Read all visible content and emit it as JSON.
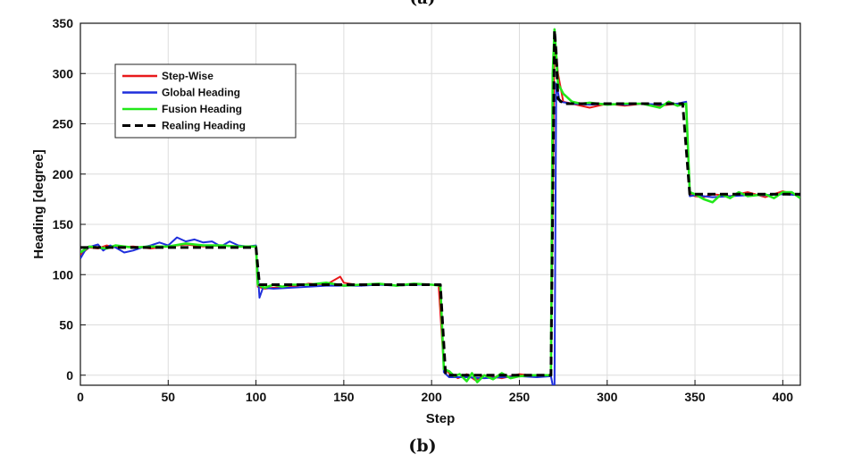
{
  "captions": {
    "top": "(a)",
    "bottom": "(b)"
  },
  "chart_data": {
    "type": "line",
    "title": "",
    "xlabel": "Step",
    "ylabel": "Heading [degree]",
    "xlim": [
      0,
      410
    ],
    "ylim": [
      -10,
      350
    ],
    "xticks": [
      0,
      50,
      100,
      150,
      200,
      250,
      300,
      350,
      400
    ],
    "yticks": [
      0,
      50,
      100,
      150,
      200,
      250,
      300,
      350
    ],
    "grid": true,
    "legend_position": "top-left",
    "series": [
      {
        "name": "Step-Wise",
        "color": "#e8191b",
        "style": "solid",
        "points": [
          [
            0,
            120
          ],
          [
            5,
            127
          ],
          [
            10,
            126
          ],
          [
            15,
            129
          ],
          [
            20,
            127
          ],
          [
            30,
            128
          ],
          [
            40,
            126
          ],
          [
            50,
            128
          ],
          [
            60,
            130
          ],
          [
            70,
            128
          ],
          [
            80,
            129
          ],
          [
            90,
            128
          ],
          [
            100,
            128
          ],
          [
            101,
            88
          ],
          [
            105,
            86
          ],
          [
            110,
            87
          ],
          [
            120,
            88
          ],
          [
            130,
            91
          ],
          [
            140,
            90
          ],
          [
            148,
            98
          ],
          [
            150,
            92
          ],
          [
            160,
            89
          ],
          [
            170,
            91
          ],
          [
            180,
            89
          ],
          [
            190,
            90
          ],
          [
            200,
            90
          ],
          [
            204,
            90
          ],
          [
            207,
            8
          ],
          [
            210,
            2
          ],
          [
            215,
            -3
          ],
          [
            220,
            1
          ],
          [
            225,
            -5
          ],
          [
            230,
            0
          ],
          [
            240,
            -3
          ],
          [
            250,
            1
          ],
          [
            260,
            -1
          ],
          [
            268,
            0
          ],
          [
            270,
            340
          ],
          [
            272,
            300
          ],
          [
            275,
            272
          ],
          [
            280,
            270
          ],
          [
            290,
            266
          ],
          [
            300,
            270
          ],
          [
            310,
            268
          ],
          [
            320,
            270
          ],
          [
            330,
            268
          ],
          [
            340,
            270
          ],
          [
            345,
            270
          ],
          [
            347,
            180
          ],
          [
            350,
            178
          ],
          [
            355,
            177
          ],
          [
            360,
            180
          ],
          [
            370,
            178
          ],
          [
            380,
            182
          ],
          [
            390,
            177
          ],
          [
            400,
            183
          ],
          [
            410,
            178
          ]
        ]
      },
      {
        "name": "Global Heading",
        "color": "#1f2fdc",
        "style": "solid",
        "points": [
          [
            0,
            116
          ],
          [
            3,
            125
          ],
          [
            6,
            128
          ],
          [
            10,
            130
          ],
          [
            13,
            124
          ],
          [
            17,
            129
          ],
          [
            20,
            127
          ],
          [
            25,
            122
          ],
          [
            30,
            124
          ],
          [
            35,
            127
          ],
          [
            40,
            129
          ],
          [
            45,
            132
          ],
          [
            50,
            129
          ],
          [
            55,
            137
          ],
          [
            60,
            133
          ],
          [
            65,
            135
          ],
          [
            70,
            132
          ],
          [
            75,
            133
          ],
          [
            80,
            128
          ],
          [
            85,
            133
          ],
          [
            90,
            129
          ],
          [
            95,
            128
          ],
          [
            100,
            129
          ],
          [
            102,
            77
          ],
          [
            104,
            87
          ],
          [
            110,
            86
          ],
          [
            120,
            87
          ],
          [
            130,
            88
          ],
          [
            140,
            89
          ],
          [
            150,
            89
          ],
          [
            160,
            89
          ],
          [
            170,
            90
          ],
          [
            180,
            89
          ],
          [
            190,
            90
          ],
          [
            200,
            90
          ],
          [
            205,
            90
          ],
          [
            207,
            3
          ],
          [
            210,
            -2
          ],
          [
            220,
            -2
          ],
          [
            230,
            -3
          ],
          [
            240,
            -2
          ],
          [
            250,
            -1
          ],
          [
            260,
            -2
          ],
          [
            268,
            -1
          ],
          [
            269,
            -10
          ],
          [
            270,
            -10
          ],
          [
            271,
            290
          ],
          [
            273,
            272
          ],
          [
            280,
            270
          ],
          [
            290,
            269
          ],
          [
            300,
            270
          ],
          [
            310,
            269
          ],
          [
            320,
            270
          ],
          [
            330,
            269
          ],
          [
            340,
            270
          ],
          [
            345,
            272
          ],
          [
            347,
            178
          ],
          [
            350,
            179
          ],
          [
            360,
            177
          ],
          [
            370,
            178
          ],
          [
            380,
            179
          ],
          [
            390,
            179
          ],
          [
            400,
            180
          ],
          [
            410,
            179
          ]
        ]
      },
      {
        "name": "Fusion Heading",
        "color": "#22e81a",
        "style": "solid",
        "points": [
          [
            0,
            122
          ],
          [
            5,
            128
          ],
          [
            10,
            127
          ],
          [
            15,
            126
          ],
          [
            20,
            129
          ],
          [
            25,
            128
          ],
          [
            30,
            127
          ],
          [
            40,
            128
          ],
          [
            50,
            128
          ],
          [
            60,
            131
          ],
          [
            65,
            130
          ],
          [
            70,
            129
          ],
          [
            80,
            129
          ],
          [
            90,
            128
          ],
          [
            100,
            128
          ],
          [
            101,
            90
          ],
          [
            105,
            87
          ],
          [
            110,
            90
          ],
          [
            115,
            88
          ],
          [
            120,
            90
          ],
          [
            130,
            90
          ],
          [
            140,
            92
          ],
          [
            150,
            89
          ],
          [
            160,
            90
          ],
          [
            170,
            91
          ],
          [
            180,
            89
          ],
          [
            190,
            91
          ],
          [
            200,
            90
          ],
          [
            205,
            89
          ],
          [
            207,
            6
          ],
          [
            210,
            4
          ],
          [
            213,
            -1
          ],
          [
            216,
            1
          ],
          [
            220,
            -6
          ],
          [
            223,
            2
          ],
          [
            226,
            -7
          ],
          [
            230,
            0
          ],
          [
            235,
            -4
          ],
          [
            240,
            2
          ],
          [
            245,
            -3
          ],
          [
            250,
            -1
          ],
          [
            258,
            0
          ],
          [
            265,
            0
          ],
          [
            268,
            0
          ],
          [
            269,
            300
          ],
          [
            270,
            344
          ],
          [
            272,
            290
          ],
          [
            275,
            280
          ],
          [
            280,
            272
          ],
          [
            285,
            270
          ],
          [
            290,
            271
          ],
          [
            300,
            269
          ],
          [
            310,
            270
          ],
          [
            320,
            270
          ],
          [
            330,
            266
          ],
          [
            335,
            272
          ],
          [
            340,
            268
          ],
          [
            345,
            270
          ],
          [
            347,
            182
          ],
          [
            350,
            180
          ],
          [
            355,
            175
          ],
          [
            360,
            172
          ],
          [
            365,
            180
          ],
          [
            370,
            176
          ],
          [
            375,
            182
          ],
          [
            380,
            178
          ],
          [
            390,
            180
          ],
          [
            395,
            176
          ],
          [
            400,
            182
          ],
          [
            405,
            182
          ],
          [
            410,
            176
          ]
        ]
      },
      {
        "name": "Realing Heading",
        "color": "#000000",
        "style": "dashed",
        "points": [
          [
            0,
            127
          ],
          [
            100,
            127
          ],
          [
            102,
            90
          ],
          [
            205,
            90
          ],
          [
            208,
            0
          ],
          [
            268,
            0
          ],
          [
            270,
            343
          ],
          [
            271,
            320
          ],
          [
            272,
            275
          ],
          [
            275,
            270
          ],
          [
            343,
            270
          ],
          [
            347,
            180
          ],
          [
            410,
            180
          ]
        ]
      }
    ]
  }
}
